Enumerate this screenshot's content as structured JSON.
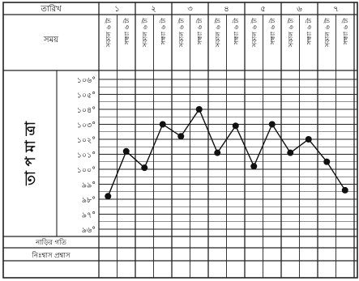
{
  "header": {
    "date_label": "তারিখ",
    "time_label": "সময়",
    "days": [
      "১",
      "২",
      "৩",
      "৪",
      "৫",
      "৬",
      "৭"
    ],
    "time_slots": [
      "সকাল ৬ টা",
      "সন্ধ্যা ৬ টা"
    ]
  },
  "side_label": "তা প মা ত্রা",
  "footer": {
    "pulse_label": "নাড়ির গতি",
    "breath_label": "নিঃশ্বাস প্রশ্বাস"
  },
  "chart_data": {
    "type": "line",
    "title": "",
    "ylabel": "তাপমাত্রা",
    "y_ticks": [
      "১০৬°",
      "১০৫°",
      "১০৪°",
      "১০৩°",
      "১০২°",
      "১০১°",
      "১০০°",
      "৯৯°",
      "৯৮°",
      "৯৭°",
      "৯৬°"
    ],
    "ylim": [
      96,
      106
    ],
    "x": [
      "১-সকাল",
      "১-সন্ধ্যা",
      "২-সকাল",
      "২-সন্ধ্যা",
      "৩-সকাল",
      "৩-সন্ধ্যা",
      "৪-সকাল",
      "৪-সন্ধ্যা",
      "৫-সকাল",
      "৫-সন্ধ্যা",
      "৬-সকাল",
      "৬-সন্ধ্যা",
      "৭-সকাল",
      "৭-সন্ধ্যা"
    ],
    "series": [
      {
        "values": [
          98.2,
          101.2,
          100.1,
          103.0,
          102.2,
          104.0,
          101.1,
          102.9,
          100.2,
          103.0,
          101.1,
          102.0,
          100.5,
          98.6
        ]
      }
    ],
    "grid": true
  },
  "colors": {
    "line": "#111111",
    "grid": "#222222",
    "background": "#ffffff"
  }
}
